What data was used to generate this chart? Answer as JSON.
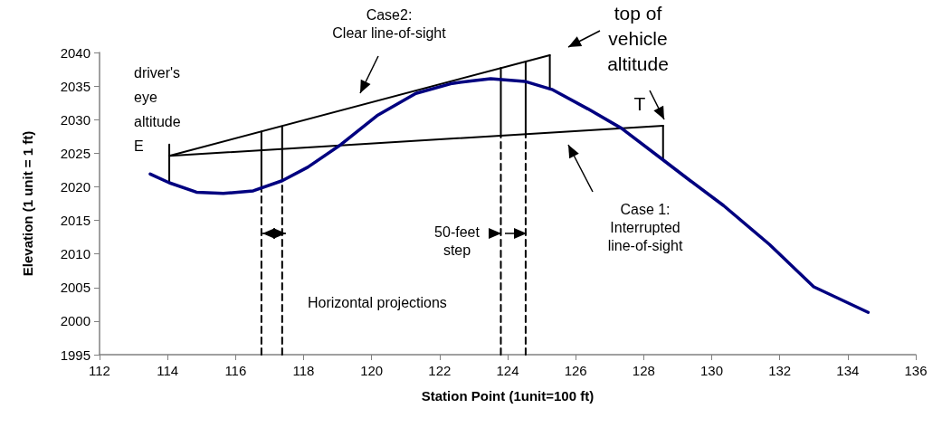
{
  "chart_data": {
    "type": "line",
    "xlabel": "Station Point (1unit=100 ft)",
    "ylabel": "Elevation (1 unit = 1 ft)",
    "xlim": [
      112,
      136
    ],
    "xticks": [
      112,
      114,
      116,
      118,
      120,
      122,
      124,
      126,
      128,
      130,
      132,
      134,
      136
    ],
    "ylim": [
      1995,
      2040
    ],
    "yticks": [
      1995,
      2000,
      2005,
      2010,
      2015,
      2020,
      2025,
      2030,
      2035,
      2040
    ],
    "marker": "none",
    "series": [
      {
        "color": "#000080",
        "x": [
          113.49,
          114.05,
          114.85,
          115.64,
          116.52,
          117.37,
          118.12,
          119.1,
          120.16,
          121.3,
          122.37,
          122.98,
          123.5,
          124.5,
          125.3,
          126.36,
          127.35,
          128.57,
          129.37,
          130.35,
          131.7,
          133.0,
          134.6
        ],
        "values": [
          2021.9,
          2020.6,
          2019.2,
          2019.0,
          2019.4,
          2020.9,
          2022.9,
          2026.3,
          2030.6,
          2033.9,
          2035.4,
          2035.8,
          2036.1,
          2035.7,
          2034.5,
          2031.6,
          2028.7,
          2024.0,
          2020.9,
          2017.2,
          2011.4,
          2005.1,
          2001.3
        ]
      },
      {
        "color": "#000000",
        "x": [
          114.05,
          125.24
        ],
        "values": [
          2024.6,
          2039.6
        ]
      },
      {
        "color": "#000000",
        "x": [
          114.05,
          128.57
        ],
        "values": [
          2024.6,
          2029.1
        ]
      },
      {
        "color": "#000000",
        "x": [
          114.05,
          114.05
        ],
        "values": [
          2020.6,
          2026.3
        ]
      },
      {
        "color": "#000000",
        "x": [
          125.24,
          125.24
        ],
        "values": [
          2034.5,
          2039.6
        ]
      },
      {
        "color": "#000000",
        "x": [
          128.57,
          128.57
        ],
        "values": [
          2024.0,
          2029.1
        ]
      },
      {
        "color": "#000000",
        "x": [
          116.76,
          116.76
        ],
        "values": [
          2019.8,
          2028.2
        ]
      },
      {
        "color": "#000000",
        "x": [
          117.37,
          117.37
        ],
        "values": [
          2020.9,
          2029.0
        ]
      },
      {
        "color": "#000000",
        "x": [
          123.8,
          123.8
        ],
        "values": [
          2027.6,
          2037.7
        ]
      },
      {
        "color": "#000000",
        "x": [
          124.53,
          124.53
        ],
        "values": [
          2027.8,
          2038.6
        ]
      },
      {
        "color": "#000000",
        "line_style": "dashed",
        "x": [
          116.76,
          116.76
        ],
        "values": [
          1995,
          2019.8
        ]
      },
      {
        "color": "#000000",
        "line_style": "dashed",
        "x": [
          117.37,
          117.37
        ],
        "values": [
          1995,
          2020.9
        ]
      },
      {
        "color": "#000000",
        "line_style": "dashed",
        "x": [
          123.8,
          123.8
        ],
        "values": [
          1995,
          2027.6
        ]
      },
      {
        "color": "#000000",
        "line_style": "dashed",
        "x": [
          124.53,
          124.53
        ],
        "values": [
          1995,
          2027.8
        ]
      }
    ],
    "annotations": [
      "Case2:\nClear line-of-sight",
      "top of\nvehicle\naltitude",
      "T",
      "driver's\neye\naltitude\nE",
      "Case 1:\nInterrupted\nline-of-sight",
      "50-feet\nstep",
      "Horizontal projections"
    ]
  }
}
